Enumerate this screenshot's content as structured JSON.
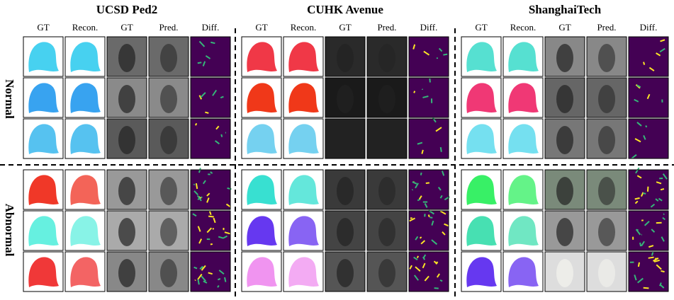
{
  "datasets": [
    {
      "title": "UCSD Ped2",
      "columns": [
        "GT",
        "Recon.",
        "GT",
        "Pred.",
        "Diff."
      ]
    },
    {
      "title": "CUHK Avenue",
      "columns": [
        "GT",
        "Recon.",
        "GT",
        "Pred.",
        "Diff."
      ]
    },
    {
      "title": "ShanghaiTech",
      "columns": [
        "GT",
        "Recon.",
        "GT",
        "Pred.",
        "Diff."
      ]
    }
  ],
  "row_groups": [
    "Normal",
    "Abnormal"
  ]
}
